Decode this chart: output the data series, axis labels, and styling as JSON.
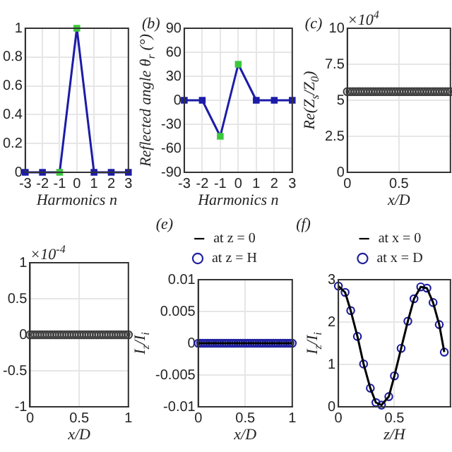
{
  "chart_data": [
    {
      "type": "line",
      "xlabel": "Harmonics n",
      "x": [
        -3,
        -2,
        -1,
        0,
        1,
        2,
        3
      ],
      "xlim": [
        -3,
        3
      ],
      "xticks": [
        -3,
        -2,
        -1,
        0,
        1,
        2,
        3
      ],
      "ylim": [
        0,
        1
      ],
      "yticks": [
        0,
        0.2,
        0.4,
        0.6,
        0.8,
        1
      ],
      "grid": true,
      "marker": "square",
      "series": [
        {
          "color": "#1c1ca8",
          "colors": [
            "#1c1ca8",
            "#1c1ca8",
            "#3cc83c",
            "#3cc83c",
            "#1c1ca8",
            "#1c1ca8",
            "#1c1ca8"
          ],
          "values": [
            0,
            0,
            0,
            1,
            0,
            0,
            0
          ]
        }
      ]
    },
    {
      "type": "line",
      "title": "(b)",
      "xlabel": "Harmonics n",
      "ylabel": "Reflected angle θ$_{r}$ (°)",
      "x": [
        -3,
        -2,
        -1,
        0,
        1,
        2,
        3
      ],
      "xlim": [
        -3,
        3
      ],
      "xticks": [
        -3,
        -2,
        -1,
        0,
        1,
        2,
        3
      ],
      "ylim": [
        -90,
        90
      ],
      "yticks": [
        -90,
        -60,
        -30,
        0,
        30,
        60,
        90
      ],
      "grid": true,
      "marker": "square",
      "series": [
        {
          "color": "#1c1ca8",
          "colors": [
            "#1c1ca8",
            "#1c1ca8",
            "#3cc83c",
            "#3cc83c",
            "#1c1ca8",
            "#1c1ca8",
            "#1c1ca8"
          ],
          "values": [
            0,
            0,
            -45,
            45,
            0,
            0,
            0
          ]
        }
      ]
    },
    {
      "type": "scatter",
      "title": "(c)",
      "xlabel": "x/D",
      "ylabel": "Re(Z$_{s}$/Z$_{0}$)",
      "annotations": [
        "×10$^{4}$"
      ],
      "x": [
        0,
        0.025,
        0.05,
        0.075,
        0.1,
        0.125,
        0.15,
        0.175,
        0.2,
        0.225,
        0.25,
        0.275,
        0.3,
        0.325,
        0.35,
        0.375,
        0.4,
        0.425,
        0.45,
        0.475,
        0.5,
        0.525,
        0.55,
        0.575,
        0.6,
        0.625,
        0.65,
        0.675,
        0.7,
        0.725,
        0.75,
        0.775,
        0.8,
        0.825,
        0.85,
        0.875,
        0.9,
        0.925,
        0.95,
        0.975,
        1
      ],
      "xlim": [
        0,
        1
      ],
      "xticks": [
        0,
        0.5
      ],
      "ylim": [
        0,
        10
      ],
      "yticks": [
        0,
        2.5,
        5,
        7.5,
        10
      ],
      "grid": true,
      "marker": "circle",
      "series": [
        {
          "color": "#404040",
          "values": [
            5.6,
            5.6,
            5.6,
            5.6,
            5.6,
            5.6,
            5.6,
            5.6,
            5.6,
            5.6,
            5.6,
            5.6,
            5.6,
            5.6,
            5.6,
            5.6,
            5.6,
            5.6,
            5.6,
            5.6,
            5.6,
            5.6,
            5.6,
            5.6,
            5.6,
            5.6,
            5.6,
            5.6,
            5.6,
            5.6,
            5.6,
            5.6,
            5.6,
            5.6,
            5.6,
            5.6,
            5.6,
            5.6,
            5.6,
            5.6,
            5.6
          ]
        }
      ]
    },
    {
      "type": "scatter",
      "xlabel": "x/D",
      "annotations": [
        "×10$^{-4}$"
      ],
      "x": [
        0,
        0.025,
        0.05,
        0.075,
        0.1,
        0.125,
        0.15,
        0.175,
        0.2,
        0.225,
        0.25,
        0.275,
        0.3,
        0.325,
        0.35,
        0.375,
        0.4,
        0.425,
        0.45,
        0.475,
        0.5,
        0.525,
        0.55,
        0.575,
        0.6,
        0.625,
        0.65,
        0.675,
        0.7,
        0.725,
        0.75,
        0.775,
        0.8,
        0.825,
        0.85,
        0.875,
        0.9,
        0.925,
        0.95,
        0.975,
        1
      ],
      "xlim": [
        0,
        1
      ],
      "xticks": [
        0,
        0.5,
        1
      ],
      "ylim": [
        -1,
        1
      ],
      "yticks": [
        -1,
        -0.5,
        0,
        0.5,
        1
      ],
      "grid": true,
      "marker": "circle",
      "series": [
        {
          "color": "#404040",
          "values": [
            0,
            0,
            0,
            0,
            0,
            0,
            0,
            0,
            0,
            0,
            0,
            0,
            0,
            0,
            0,
            0,
            0,
            0,
            0,
            0,
            0,
            0,
            0,
            0,
            0,
            0,
            0,
            0,
            0,
            0,
            0,
            0,
            0,
            0,
            0,
            0,
            0,
            0,
            0,
            0,
            0
          ]
        }
      ]
    },
    {
      "type": "line",
      "title": "(e)",
      "xlabel": "x/D",
      "ylabel": "I$_{z}$/I$_{i}$",
      "x": [
        0,
        0.025,
        0.05,
        0.075,
        0.1,
        0.125,
        0.15,
        0.175,
        0.2,
        0.225,
        0.25,
        0.275,
        0.3,
        0.325,
        0.35,
        0.375,
        0.4,
        0.425,
        0.45,
        0.475,
        0.5,
        0.525,
        0.55,
        0.575,
        0.6,
        0.625,
        0.65,
        0.675,
        0.7,
        0.725,
        0.75,
        0.775,
        0.8,
        0.825,
        0.85,
        0.875,
        0.9,
        0.925,
        0.95,
        0.975,
        1
      ],
      "xlim": [
        0,
        1
      ],
      "xticks": [
        0,
        0.5,
        1
      ],
      "ylim": [
        -0.01,
        0.01
      ],
      "yticks": [
        -0.01,
        -0.005,
        0,
        0.005,
        0.01
      ],
      "grid": true,
      "legend": "top",
      "series": [
        {
          "name": "at z = 0",
          "type": "line",
          "marker": "none",
          "color": "#000000",
          "values": [
            0,
            0,
            0,
            0,
            0,
            0,
            0,
            0,
            0,
            0,
            0,
            0,
            0,
            0,
            0,
            0,
            0,
            0,
            0,
            0,
            0,
            0,
            0,
            0,
            0,
            0,
            0,
            0,
            0,
            0,
            0,
            0,
            0,
            0,
            0,
            0,
            0,
            0,
            0,
            0,
            0
          ]
        },
        {
          "name": "at z = H",
          "type": "scatter",
          "marker": "circle",
          "color": "#2020a0",
          "values": [
            0,
            0,
            0,
            0,
            0,
            0,
            0,
            0,
            0,
            0,
            0,
            0,
            0,
            0,
            0,
            0,
            0,
            0,
            0,
            0,
            0,
            0,
            0,
            0,
            0,
            0,
            0,
            0,
            0,
            0,
            0,
            0,
            0,
            0,
            0,
            0,
            0,
            0,
            0,
            0,
            0
          ]
        }
      ]
    },
    {
      "type": "line",
      "title": "(f)",
      "xlabel": "z/H",
      "ylabel": "I$_{z}$/I$_{i}$",
      "x": [
        0,
        0.06,
        0.11,
        0.17,
        0.225,
        0.285,
        0.335,
        0.385,
        0.45,
        0.5,
        0.56,
        0.62,
        0.675,
        0.735,
        0.79,
        0.845,
        0.9,
        0.945
      ],
      "xlim": [
        0,
        1
      ],
      "xticks": [
        0,
        0.5
      ],
      "ylim": [
        0,
        3
      ],
      "yticks": [
        0,
        1,
        2,
        3
      ],
      "grid": true,
      "legend": "top",
      "series": [
        {
          "name": "at x = 0",
          "type": "line",
          "marker": "none",
          "color": "#000000",
          "values": [
            2.85,
            2.7,
            2.27,
            1.66,
            1.01,
            0.44,
            0.1,
            0.04,
            0.24,
            0.73,
            1.38,
            2.02,
            2.55,
            2.83,
            2.8,
            2.46,
            1.94,
            1.29
          ]
        },
        {
          "name": "at x = D",
          "type": "scatter",
          "marker": "circle",
          "color": "#2020a0",
          "values": [
            2.85,
            2.7,
            2.27,
            1.66,
            1.01,
            0.44,
            0.1,
            0.04,
            0.24,
            0.73,
            1.38,
            2.02,
            2.55,
            2.83,
            2.8,
            2.46,
            1.94,
            1.29
          ]
        }
      ]
    }
  ]
}
